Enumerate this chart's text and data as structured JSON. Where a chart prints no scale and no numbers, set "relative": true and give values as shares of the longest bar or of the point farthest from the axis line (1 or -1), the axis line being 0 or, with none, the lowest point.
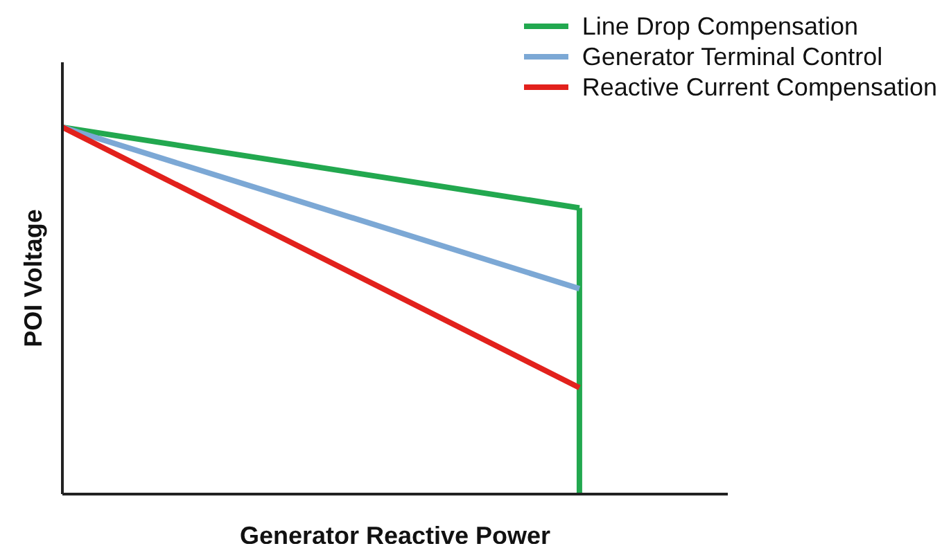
{
  "chart_data": {
    "type": "line",
    "relative": true,
    "xlabel": "Generator Reactive Power",
    "ylabel": "POI Voltage",
    "categories": [
      null,
      null
    ],
    "grid": false,
    "legend": "top right",
    "marker": "none",
    "line_style": "solid",
    "series": [
      {
        "name": "Line Drop Compensation",
        "color": "#22a84f",
        "values": [
          1,
          0.78
        ]
      },
      {
        "name": "Generator Terminal Control",
        "color": "#7ca8d5",
        "values": [
          1,
          0.56
        ]
      },
      {
        "name": "Reactive Current Compensation",
        "color": "#e2211c",
        "values": [
          1,
          0.29
        ]
      }
    ]
  }
}
